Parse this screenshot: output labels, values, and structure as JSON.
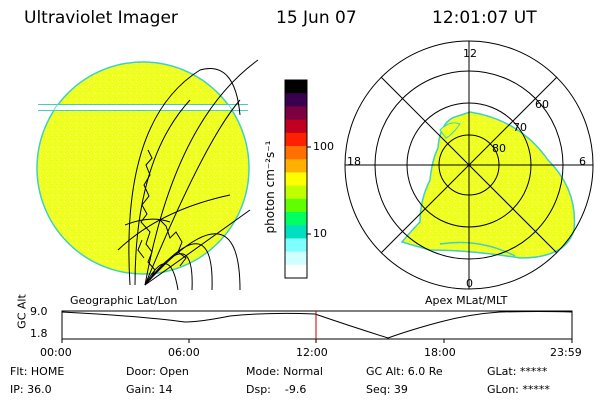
{
  "header": {
    "instrument": "Ultraviolet Imager",
    "date": "15 Jun 07",
    "time": "12:01:07 UT"
  },
  "left_panel": {
    "caption": "Geographic Lat/Lon"
  },
  "right_panel": {
    "caption": "Apex MLat/MLT",
    "mlt_labels": [
      "12",
      "18",
      "6",
      "0"
    ],
    "mlat_labels": [
      "60",
      "70",
      "80"
    ]
  },
  "colorbar": {
    "unit_label": "photon cm⁻²s⁻¹",
    "tick_labels": [
      "100",
      "10"
    ],
    "colors": [
      "#000000",
      "#3a0050",
      "#7a0040",
      "#c00020",
      "#ff2000",
      "#ff7000",
      "#ffb000",
      "#ffff00",
      "#c0ff00",
      "#60ff00",
      "#00ff60",
      "#00e0c0",
      "#80ffff",
      "#d0ffff",
      "#ffffff"
    ]
  },
  "altitude_plot": {
    "y_label": "GC Alt",
    "y_ticks": [
      "9.0",
      "1.8"
    ],
    "x_ticks": [
      "00:00",
      "06:00",
      "12:00",
      "18:00",
      "23:59"
    ],
    "marker_color": "#c00000"
  },
  "footer": {
    "row1": [
      "Flt: HOME",
      "Door: Open",
      "Mode: Normal",
      "GC Alt: 6.0 Re",
      "GLat: *****"
    ],
    "row2": [
      "IP: 36.0",
      "Gain: 14",
      "Dsp:    -9.6",
      "Seq: 39",
      "GLon: *****"
    ]
  },
  "colors": {
    "image_fill": "#f0ff20",
    "image_edge": "#40d0c0",
    "speckle": "#c8ff40"
  }
}
